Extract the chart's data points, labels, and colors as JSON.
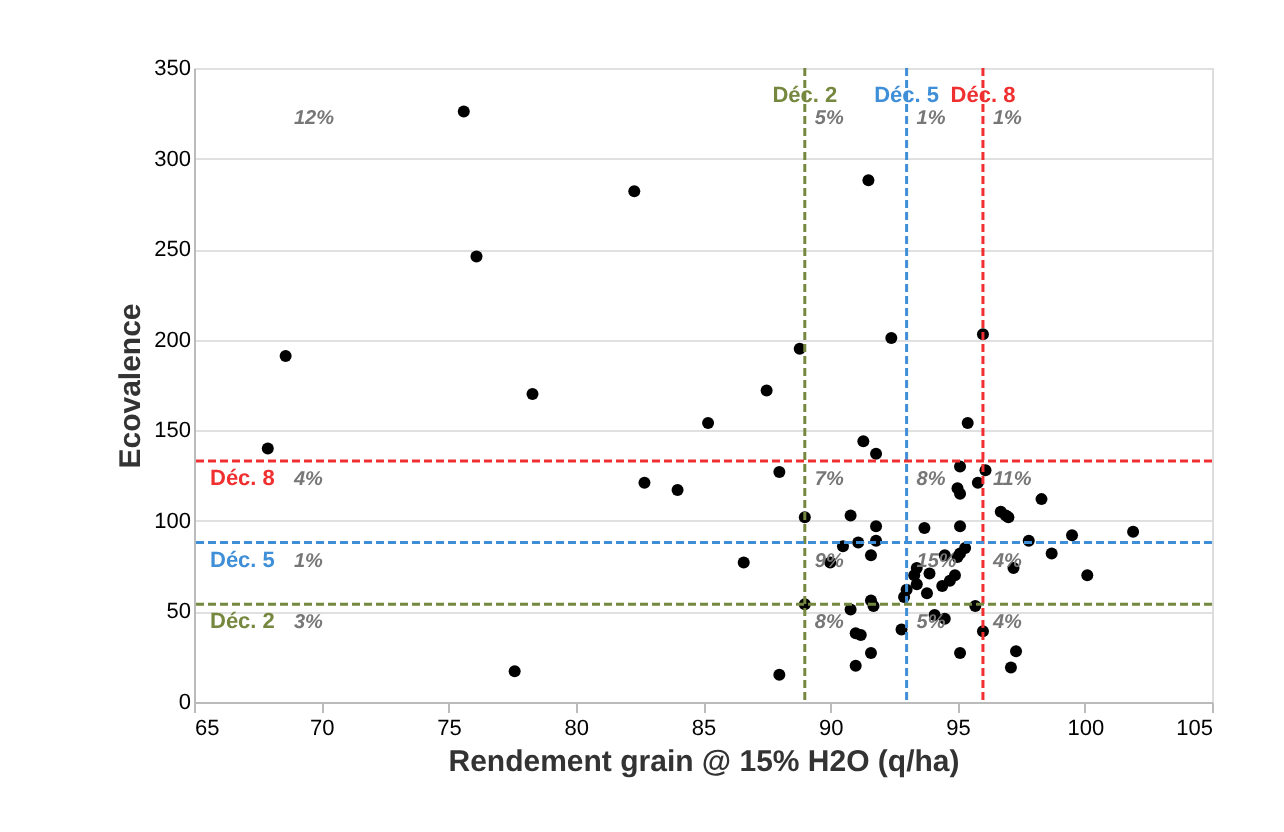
{
  "chart_data": {
    "type": "scatter",
    "xlabel": "Rendement grain @ 15% H2O (q/ha)",
    "ylabel": "Ecovalence",
    "xlim": [
      65,
      105
    ],
    "xticks": [
      65,
      70,
      75,
      80,
      85,
      90,
      95,
      100,
      105
    ],
    "ylim": [
      0,
      350
    ],
    "yticks": [
      0,
      50,
      100,
      150,
      200,
      250,
      300,
      350
    ],
    "grid": "y",
    "marker": "circle",
    "series": [
      {
        "color": "#000000",
        "x": [
          75.6,
          76.1,
          82.3,
          68.6,
          67.9,
          78.3,
          85.2,
          82.7,
          84.0,
          77.6,
          91.5,
          88.8,
          92.4,
          96.0,
          87.5,
          95.4,
          91.3,
          91.8,
          88.0,
          95.1,
          96.1,
          95.8,
          95.0,
          95.1,
          98.3,
          96.7,
          96.9,
          97.0,
          89.0,
          90.8,
          91.8,
          93.7,
          95.1,
          99.5,
          97.8,
          90.5,
          91.1,
          91.8,
          95.3,
          95.1,
          95.0,
          94.5,
          91.6,
          98.7,
          86.6,
          90.0,
          97.2,
          101.9,
          100.1,
          93.4,
          93.9,
          93.3,
          94.9,
          94.4,
          94.7,
          93.4,
          93.8,
          93.0,
          92.9,
          89.0,
          91.6,
          91.7,
          90.8,
          95.7,
          94.1,
          94.5,
          92.8,
          96.0,
          91.0,
          91.2,
          97.3,
          91.6,
          95.1,
          91.0,
          97.1,
          88.0
        ],
        "values": [
          326,
          246,
          282,
          191,
          140,
          170,
          154,
          121,
          117,
          17,
          288,
          195,
          201,
          203,
          172,
          154,
          144,
          137,
          127,
          130,
          128,
          121,
          118,
          115,
          112,
          105,
          103,
          102,
          102,
          103,
          97,
          96,
          97,
          92,
          89,
          86,
          88,
          89,
          85,
          82,
          80,
          81,
          81,
          82,
          77,
          77,
          74,
          94,
          70,
          74,
          71,
          70,
          70,
          64,
          67,
          65,
          60,
          62,
          58,
          54,
          56,
          53,
          51,
          53,
          48,
          46,
          40,
          39,
          38,
          37,
          28,
          27,
          27,
          20,
          19,
          15
        ]
      }
    ],
    "ref_lines": [
      {
        "axis": "x",
        "value": 89,
        "label": "Déc. 2",
        "color": "#76883f",
        "line_style": "dashed"
      },
      {
        "axis": "x",
        "value": 93,
        "label": "Déc. 5",
        "color": "#3f8fd8",
        "line_style": "dashed"
      },
      {
        "axis": "x",
        "value": 96,
        "label": "Déc. 8",
        "color": "#f03030",
        "line_style": "dashed"
      },
      {
        "axis": "y",
        "value": 133,
        "label": "Déc. 8",
        "color": "#f03030",
        "line_style": "dashed"
      },
      {
        "axis": "y",
        "value": 88,
        "label": "Déc. 5",
        "color": "#3f8fd8",
        "line_style": "dashed"
      },
      {
        "axis": "y",
        "value": 54,
        "label": "Déc. 2",
        "color": "#76883f",
        "line_style": "dashed"
      }
    ],
    "annotations": [
      "12%",
      "5%",
      "1%",
      "1%",
      "4%",
      "1%",
      "3%",
      "7%",
      "8%",
      "11%",
      "9%",
      "15%",
      "4%",
      "8%",
      "5%",
      "4%"
    ]
  }
}
